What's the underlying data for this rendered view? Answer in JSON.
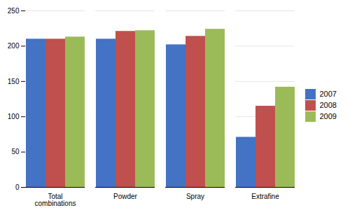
{
  "chart_data": {
    "type": "bar",
    "categories": [
      "Total combinations",
      "Powder",
      "Spray",
      "Extrafine"
    ],
    "series": [
      {
        "name": "2007",
        "color": "#4472C4",
        "values": [
          210,
          210,
          202,
          71
        ]
      },
      {
        "name": "2008",
        "color": "#C0504D",
        "values": [
          210,
          221,
          214,
          115
        ]
      },
      {
        "name": "2009",
        "color": "#9BBB59",
        "values": [
          213,
          222,
          224,
          142
        ]
      }
    ],
    "ylim": [
      0,
      250
    ],
    "yticks": [
      0,
      50,
      100,
      150,
      200,
      250
    ],
    "grid": true,
    "legend": "right"
  }
}
